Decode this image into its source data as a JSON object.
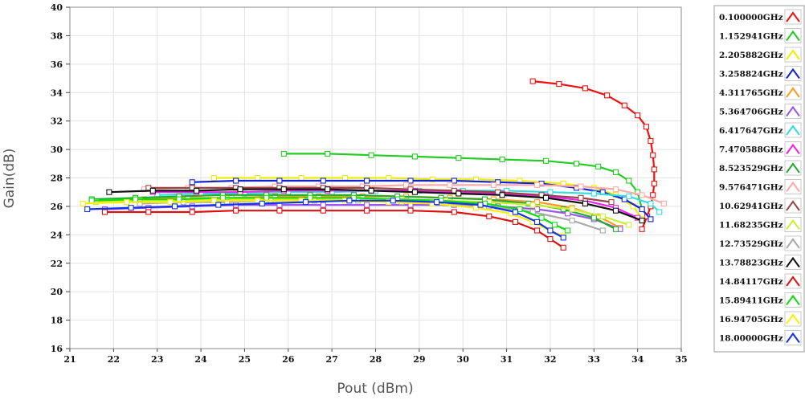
{
  "chart_data": {
    "type": "line",
    "xlabel": "Pout (dBm)",
    "ylabel": "Gain(dB)",
    "xlim": [
      21,
      35
    ],
    "ylim": [
      16,
      40
    ],
    "xticks": [
      21,
      22,
      23,
      24,
      25,
      26,
      27,
      28,
      29,
      30,
      31,
      32,
      33,
      34,
      35
    ],
    "yticks": [
      16,
      18,
      20,
      22,
      24,
      26,
      28,
      30,
      32,
      34,
      36,
      38,
      40
    ],
    "grid": true,
    "legend_position": "right",
    "series": [
      {
        "name": "0.100000GHz",
        "color": "#ee1111",
        "x": [
          31.6,
          32.2,
          32.8,
          33.3,
          33.7,
          34.0,
          34.2,
          34.3,
          34.35,
          34.38,
          34.38,
          34.35,
          34.3,
          34.22,
          34.1
        ],
        "y": [
          34.8,
          34.6,
          34.3,
          33.8,
          33.1,
          32.4,
          31.6,
          30.6,
          29.6,
          28.6,
          27.6,
          26.8,
          26.0,
          25.3,
          24.4
        ]
      },
      {
        "name": "1.152941GHz",
        "color": "#22cc22",
        "x": [
          25.9,
          26.9,
          27.9,
          28.9,
          29.9,
          30.9,
          31.9,
          32.6,
          33.1,
          33.5,
          33.8,
          34.0,
          34.1
        ],
        "y": [
          29.7,
          29.7,
          29.6,
          29.5,
          29.4,
          29.3,
          29.2,
          29.0,
          28.8,
          28.4,
          27.8,
          27.0,
          25.8
        ]
      },
      {
        "name": "2.205882GHz",
        "color": "#eeee00",
        "x": [
          24.3,
          25.3,
          26.3,
          27.3,
          28.3,
          29.3,
          30.3,
          31.3,
          32.3,
          33.0,
          33.5,
          33.9,
          34.1
        ],
        "y": [
          28.0,
          28.0,
          28.0,
          28.0,
          28.0,
          27.9,
          27.9,
          27.8,
          27.6,
          27.3,
          26.8,
          26.0,
          25.1
        ]
      },
      {
        "name": "3.258824GHz",
        "color": "#1122dd",
        "x": [
          23.8,
          24.8,
          25.8,
          26.8,
          27.8,
          28.8,
          29.8,
          30.8,
          31.8,
          32.6,
          33.2,
          33.7,
          34.1,
          34.3
        ],
        "y": [
          27.7,
          27.8,
          27.8,
          27.8,
          27.8,
          27.8,
          27.8,
          27.7,
          27.6,
          27.3,
          27.0,
          26.5,
          25.8,
          25.1
        ]
      },
      {
        "name": "4.311765GHz",
        "color": "#ff9922",
        "x": [
          22.7,
          23.7,
          24.7,
          25.7,
          26.7,
          27.7,
          28.7,
          29.7,
          30.7,
          31.7,
          32.5,
          33.1,
          33.6
        ],
        "y": [
          26.5,
          26.6,
          26.6,
          26.7,
          26.7,
          26.7,
          26.7,
          26.6,
          26.5,
          26.3,
          25.9,
          25.3,
          24.5
        ]
      },
      {
        "name": "5.364706GHz",
        "color": "#9955ee",
        "x": [
          21.8,
          22.8,
          23.8,
          24.8,
          25.8,
          26.8,
          27.8,
          28.8,
          29.8,
          30.8,
          31.7,
          32.4,
          33.0,
          33.6
        ],
        "y": [
          25.8,
          25.9,
          26.0,
          26.1,
          26.1,
          26.1,
          26.1,
          26.1,
          26.1,
          26.0,
          25.8,
          25.5,
          25.1,
          24.4
        ]
      },
      {
        "name": "6.417647GHz",
        "color": "#33dddd",
        "x": [
          23.0,
          24.0,
          25.0,
          26.0,
          27.0,
          28.0,
          29.0,
          30.0,
          31.0,
          32.0,
          33.0,
          33.8,
          34.3,
          34.5
        ],
        "y": [
          26.8,
          26.9,
          26.9,
          27.0,
          27.0,
          27.1,
          27.1,
          27.1,
          27.1,
          27.0,
          26.9,
          26.7,
          26.2,
          25.6
        ]
      },
      {
        "name": "7.470588GHz",
        "color": "#ee22ee",
        "x": [
          22.9,
          23.9,
          24.9,
          25.9,
          26.9,
          27.9,
          28.9,
          29.9,
          30.9,
          31.9,
          32.8,
          33.5,
          34.0
        ],
        "y": [
          27.0,
          27.0,
          27.0,
          27.1,
          27.1,
          27.1,
          27.1,
          27.0,
          26.9,
          26.7,
          26.4,
          25.9,
          25.2
        ]
      },
      {
        "name": "8.523529GHz",
        "color": "#22aa33",
        "x": [
          21.5,
          22.5,
          23.5,
          24.5,
          25.5,
          26.5,
          27.5,
          28.5,
          29.5,
          30.5,
          31.5,
          32.3,
          33.0,
          33.5
        ],
        "y": [
          26.5,
          26.6,
          26.7,
          26.8,
          26.8,
          26.8,
          26.8,
          26.7,
          26.6,
          26.5,
          26.2,
          25.8,
          25.2,
          24.4
        ]
      },
      {
        "name": "9.576471GHz",
        "color": "#ffaaaa",
        "x": [
          22.7,
          23.7,
          24.7,
          25.7,
          26.7,
          27.7,
          28.7,
          29.7,
          30.7,
          31.7,
          32.7,
          33.5,
          34.1,
          34.6
        ],
        "y": [
          27.2,
          27.3,
          27.3,
          27.4,
          27.4,
          27.4,
          27.5,
          27.5,
          27.5,
          27.5,
          27.4,
          27.2,
          26.8,
          26.2
        ]
      },
      {
        "name": "10.62941GHz",
        "color": "#994444",
        "x": [
          22.8,
          23.8,
          24.8,
          25.8,
          26.8,
          27.8,
          28.8,
          29.8,
          30.8,
          31.8,
          32.7,
          33.4
        ],
        "y": [
          27.3,
          27.3,
          27.3,
          27.3,
          27.3,
          27.3,
          27.2,
          27.1,
          27.0,
          26.8,
          26.6,
          26.3
        ]
      },
      {
        "name": "11.68235GHz",
        "color": "#ccee33",
        "x": [
          21.6,
          22.6,
          23.6,
          24.6,
          25.6,
          26.6,
          27.6,
          28.6,
          29.6,
          30.6,
          31.6,
          32.5,
          33.2,
          33.8
        ],
        "y": [
          26.3,
          26.4,
          26.4,
          26.5,
          26.5,
          26.5,
          26.5,
          26.5,
          26.4,
          26.3,
          26.1,
          25.8,
          25.3,
          24.7
        ]
      },
      {
        "name": "12.73529GHz",
        "color": "#aaaaaa",
        "x": [
          22.6,
          23.6,
          24.6,
          25.6,
          26.6,
          27.6,
          28.6,
          29.6,
          30.6,
          31.6,
          32.5,
          33.2
        ],
        "y": [
          26.2,
          26.3,
          26.3,
          26.4,
          26.4,
          26.4,
          26.3,
          26.2,
          26.0,
          25.6,
          25.0,
          24.3
        ]
      },
      {
        "name": "13.78823GHz",
        "color": "#111111",
        "x": [
          21.9,
          22.9,
          23.9,
          24.9,
          25.9,
          26.9,
          27.9,
          28.9,
          29.9,
          30.9,
          31.9,
          32.8,
          33.5,
          34.1
        ],
        "y": [
          27.0,
          27.1,
          27.1,
          27.2,
          27.2,
          27.2,
          27.1,
          27.0,
          26.9,
          26.8,
          26.6,
          26.2,
          25.7,
          25.0
        ]
      },
      {
        "name": "14.84117GHz",
        "color": "#dd1111",
        "x": [
          21.8,
          22.8,
          23.8,
          24.8,
          25.8,
          26.8,
          27.8,
          28.8,
          29.8,
          30.6,
          31.2,
          31.7,
          32.0,
          32.3
        ],
        "y": [
          25.6,
          25.6,
          25.6,
          25.7,
          25.7,
          25.7,
          25.7,
          25.7,
          25.6,
          25.3,
          24.9,
          24.3,
          23.7,
          23.1
        ]
      },
      {
        "name": "15.89411GHz",
        "color": "#11dd11",
        "x": [
          21.5,
          22.5,
          23.5,
          24.5,
          25.5,
          26.5,
          27.5,
          28.5,
          29.5,
          30.5,
          31.3,
          31.8,
          32.1,
          32.4
        ],
        "y": [
          26.4,
          26.5,
          26.5,
          26.6,
          26.6,
          26.6,
          26.6,
          26.5,
          26.4,
          26.2,
          25.8,
          25.2,
          24.7,
          24.3
        ]
      },
      {
        "name": "16.94705GHz",
        "color": "#ffee00",
        "x": [
          21.3,
          22.3,
          23.3,
          24.3,
          25.3,
          26.3,
          27.3,
          28.3,
          29.3,
          30.3,
          31.1,
          31.6,
          32.0,
          32.3
        ],
        "y": [
          26.2,
          26.3,
          26.3,
          26.4,
          26.4,
          26.4,
          26.4,
          26.3,
          26.2,
          25.9,
          25.5,
          24.9,
          24.3,
          23.9
        ]
      },
      {
        "name": "18.00000GHz",
        "color": "#1133ee",
        "x": [
          21.4,
          22.4,
          23.4,
          24.4,
          25.4,
          26.4,
          27.4,
          28.4,
          29.4,
          30.4,
          31.2,
          31.7,
          32.0,
          32.3
        ],
        "y": [
          25.8,
          25.9,
          26.0,
          26.1,
          26.2,
          26.3,
          26.4,
          26.4,
          26.3,
          26.1,
          25.6,
          24.9,
          24.3,
          23.8
        ]
      }
    ]
  }
}
